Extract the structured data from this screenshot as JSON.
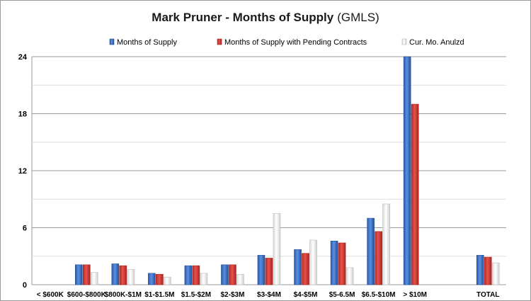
{
  "chart_data": {
    "type": "bar",
    "title": "Mark Pruner - Months of Supply",
    "title_suffix": "(GMLS)",
    "categories": [
      "< $600K",
      "$600-$800K",
      "$800K-$1M",
      "$1-$1.5M",
      "$1.5-$2M",
      "$2-$3M",
      "$3-$4M",
      "$4-$5M",
      "$5-6.5M",
      "$6.5-$10M",
      "> $10M",
      "",
      "TOTAL"
    ],
    "series": [
      {
        "name": "Months of Supply",
        "color": "#3a6fc4",
        "values": [
          0,
          2.1,
          2.2,
          1.2,
          2.0,
          2.1,
          3.1,
          3.7,
          4.6,
          7.0,
          24.0,
          0,
          3.1
        ]
      },
      {
        "name": "Months of Supply with Pending Contracts",
        "color": "#d33a34",
        "values": [
          0,
          2.1,
          2.0,
          1.1,
          2.0,
          2.1,
          2.8,
          3.3,
          4.4,
          5.6,
          19.0,
          0,
          2.9
        ]
      },
      {
        "name": "Cur. Mo. Anulzd",
        "color": "#f3f3f3",
        "values": [
          0,
          1.3,
          1.6,
          0.8,
          1.2,
          1.1,
          7.5,
          4.7,
          1.8,
          8.5,
          0,
          0,
          2.3
        ]
      }
    ],
    "y_ticks": [
      0,
      6,
      12,
      18,
      24
    ],
    "ylim": [
      0,
      24
    ],
    "xlabel": "",
    "ylabel": "",
    "grid": true,
    "legend_position": "top"
  }
}
